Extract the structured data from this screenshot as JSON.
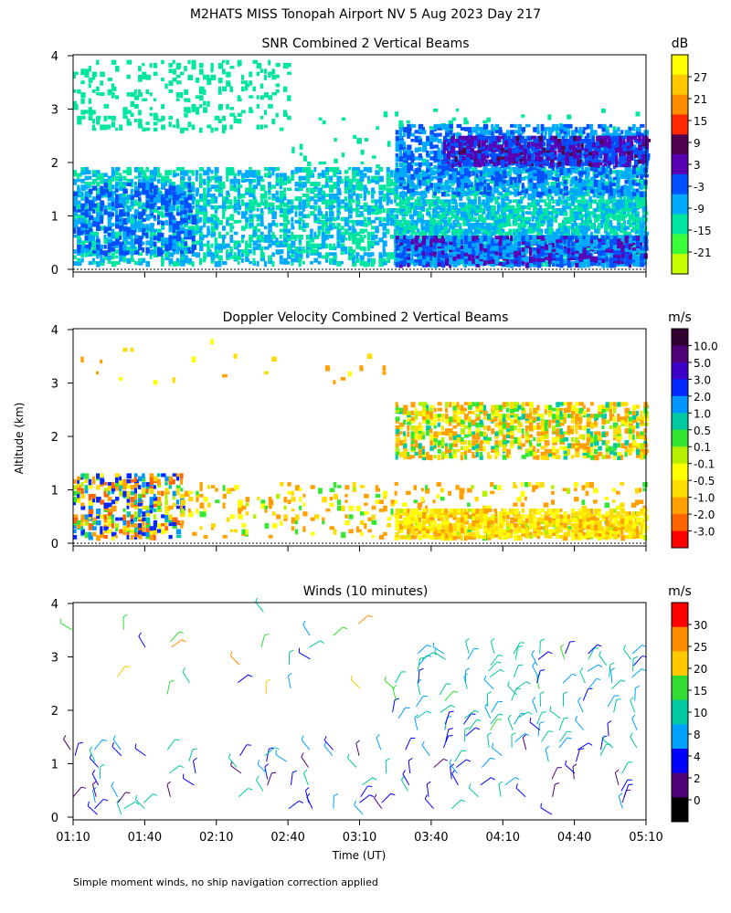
{
  "figure": {
    "title": "M2HATS MISS Tonopah Airport NV   5 Aug 2023 Day 217",
    "footnote": "Simple moment winds, no ship navigation correction applied",
    "y_axis_label": "Altitude (km)",
    "x_axis_label": "Time (UT)"
  },
  "chart_data": [
    {
      "type": "heatmap",
      "title": "SNR Combined 2 Vertical Beams",
      "colorbar_unit": "dB",
      "colorbar_ticks": [
        "27",
        "21",
        "15",
        "9",
        "3",
        "-3",
        "-9",
        "-15",
        "-21"
      ],
      "colorbar_colors": [
        "#ffff00",
        "#ffc800",
        "#ff8c00",
        "#ff2800",
        "#500050",
        "#5a00b4",
        "#0050ff",
        "#00aaff",
        "#00e6a0",
        "#3cff3c",
        "#c8ff00"
      ],
      "xlabel": "",
      "ylabel": "Altitude (km)",
      "x_ticks": [
        "01:10",
        "01:40",
        "02:10",
        "02:40",
        "03:10",
        "03:40",
        "04:10",
        "04:40",
        "05:10"
      ],
      "y_ticks": [
        "0",
        "1",
        "2",
        "3",
        "4"
      ],
      "xlim": [
        "01:10",
        "05:10"
      ],
      "ylim": [
        0,
        4
      ],
      "regions": [
        {
          "t0": 70,
          "t1": 310,
          "h0": 0.1,
          "h1": 1.9,
          "d": 0.55,
          "v": [
            -21,
            -9
          ]
        },
        {
          "t0": 70,
          "t1": 120,
          "h0": 0.3,
          "h1": 1.6,
          "d": 0.4,
          "v": [
            -12,
            -3
          ]
        },
        {
          "t0": 70,
          "t1": 160,
          "h0": 2.6,
          "h1": 3.9,
          "d": 0.18,
          "v": [
            -21,
            -17
          ]
        },
        {
          "t0": 160,
          "t1": 310,
          "h0": 1.8,
          "h1": 3.0,
          "d": 0.05,
          "v": [
            -21,
            -17
          ]
        },
        {
          "t0": 205,
          "t1": 310,
          "h0": 0.1,
          "h1": 1.3,
          "d": 0.45,
          "v": [
            -21,
            -10
          ]
        },
        {
          "t0": 205,
          "t1": 310,
          "h0": 1.4,
          "h1": 2.7,
          "d": 0.55,
          "v": [
            -15,
            -4
          ]
        },
        {
          "t0": 225,
          "t1": 310,
          "h0": 1.95,
          "h1": 2.5,
          "d": 0.85,
          "v": [
            -9,
            4
          ]
        },
        {
          "t0": 205,
          "t1": 310,
          "h0": 0.08,
          "h1": 0.6,
          "d": 0.85,
          "v": [
            -15,
            2
          ]
        }
      ]
    },
    {
      "type": "heatmap",
      "title": "Doppler Velocity Combined 2 Vertical Beams",
      "colorbar_unit": "m/s",
      "colorbar_ticks": [
        "10.0",
        "5.0",
        "3.0",
        "2.0",
        "1.0",
        "0.5",
        "0.1",
        "-0.1",
        "-0.5",
        "-1.0",
        "-2.0",
        "-3.0"
      ],
      "colorbar_colors": [
        "#300030",
        "#500078",
        "#3c00c8",
        "#0028ff",
        "#0096ff",
        "#00c8a0",
        "#32e632",
        "#b4f000",
        "#ffff00",
        "#ffdc00",
        "#ffa000",
        "#ff6400",
        "#ff0000"
      ],
      "xlabel": "",
      "ylabel": "Altitude (km)",
      "x_ticks": [
        "01:10",
        "01:40",
        "02:10",
        "02:40",
        "03:10",
        "03:40",
        "04:10",
        "04:40",
        "05:10"
      ],
      "y_ticks": [
        "0",
        "1",
        "2",
        "3",
        "4"
      ],
      "xlim": [
        "01:10",
        "05:10"
      ],
      "ylim": [
        0,
        4
      ],
      "regions": [
        {
          "t0": 70,
          "t1": 115,
          "h0": 0.1,
          "h1": 1.3,
          "d": 0.5,
          "v": [
            -3,
            3
          ]
        },
        {
          "t0": 115,
          "t1": 310,
          "h0": 0.1,
          "h1": 1.1,
          "d": 0.14,
          "v": [
            -2,
            0.5
          ]
        },
        {
          "t0": 205,
          "t1": 310,
          "h0": 1.6,
          "h1": 2.6,
          "d": 0.6,
          "v": [
            -1.8,
            0.8
          ]
        },
        {
          "t0": 205,
          "t1": 310,
          "h0": 0.1,
          "h1": 0.6,
          "d": 0.8,
          "v": [
            -1.2,
            -0.05
          ]
        },
        {
          "t0": 70,
          "t1": 200,
          "h0": 3.0,
          "h1": 3.8,
          "d": 0.02,
          "v": [
            -2,
            0
          ]
        }
      ]
    },
    {
      "type": "wind-barbs",
      "title": "Winds (10 minutes)",
      "colorbar_unit": "m/s",
      "colorbar_ticks": [
        "30",
        "25",
        "20",
        "15",
        "10",
        "8",
        "4",
        "2",
        "0"
      ],
      "colorbar_colors": [
        "#ff0000",
        "#ff8c00",
        "#ffc800",
        "#32dc32",
        "#00c8a0",
        "#00a0ff",
        "#0000ff",
        "#500078",
        "#000000"
      ],
      "xlabel": "Time (UT)",
      "ylabel": "Altitude (km)",
      "x_ticks": [
        "01:10",
        "01:40",
        "02:10",
        "02:40",
        "03:10",
        "03:40",
        "04:10",
        "04:40",
        "05:10"
      ],
      "y_ticks": [
        "0",
        "1",
        "2",
        "3",
        "4"
      ],
      "xlim": [
        "01:10",
        "05:10"
      ],
      "ylim": [
        0,
        4
      ],
      "regions": [
        {
          "t0": 70,
          "t1": 310,
          "h0": 0.05,
          "h1": 1.3,
          "d": 0.35,
          "v": [
            2,
            12
          ]
        },
        {
          "t0": 205,
          "t1": 310,
          "h0": 1.3,
          "h1": 3.1,
          "d": 0.55,
          "v": [
            5,
            16
          ]
        },
        {
          "t0": 70,
          "t1": 200,
          "h0": 2.3,
          "h1": 4.0,
          "d": 0.12,
          "v": [
            4,
            30
          ]
        }
      ]
    }
  ]
}
